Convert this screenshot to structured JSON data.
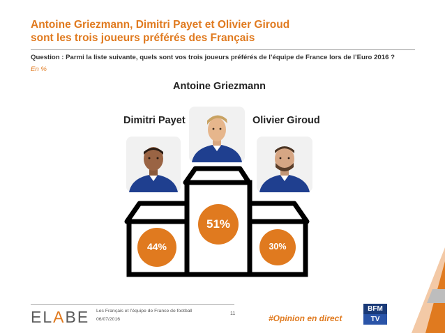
{
  "header": {
    "title_line1": "Antoine Griezmann, Dimitri Payet et Olivier Giroud",
    "title_line2": "sont les trois joueurs préférés des Français",
    "question": "Question : Parmi la liste suivante, quels sont vos trois joueurs préférés de l’équipe de France lors de l’Euro 2016 ?",
    "unit": "En %"
  },
  "podium": {
    "first": {
      "name": "Antoine Griezmann",
      "value_label": "51%",
      "value": 51
    },
    "second": {
      "name": "Dimitri Payet",
      "value_label": "44%",
      "value": 44
    },
    "third": {
      "name": "Olivier Giroud",
      "value_label": "30%",
      "value": 30
    }
  },
  "footer": {
    "logo_prefix": "EL",
    "logo_accent": "A",
    "logo_suffix": "BE",
    "line1": "Les Français et l’équipe de France de football",
    "line2": "06/07/2016",
    "page_number": "11",
    "hashtag": "#Opinion en direct",
    "partner_logo_top": "BFM",
    "partner_logo_bottom": "TV"
  },
  "colors": {
    "accent": "#e07a1f",
    "podium_outline": "#000000",
    "jersey": "#1f3f8f"
  }
}
